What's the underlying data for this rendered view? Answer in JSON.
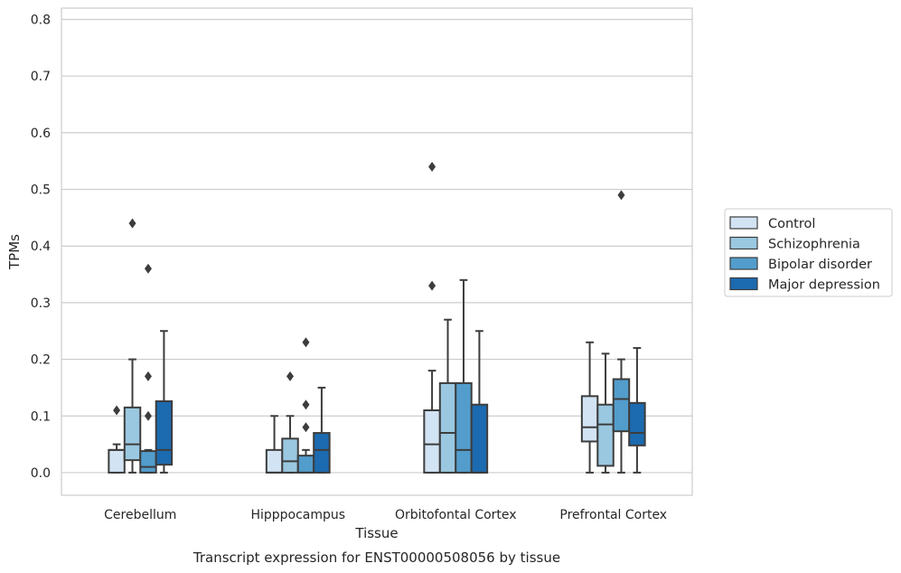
{
  "chart_data": {
    "type": "box",
    "title": "",
    "caption": "Transcript expression for ENST00000508056 by tissue",
    "xlabel": "Tissue",
    "ylabel": "TPMs",
    "ylim": [
      -0.04,
      0.82
    ],
    "yticks": [
      0.0,
      0.1,
      0.2,
      0.3,
      0.4,
      0.5,
      0.6,
      0.7,
      0.8
    ],
    "ytick_labels": [
      "0.0",
      "0.1",
      "0.2",
      "0.3",
      "0.4",
      "0.5",
      "0.6",
      "0.7",
      "0.8"
    ],
    "grid": "horizontal",
    "legend_position": "right",
    "categories": [
      "Cerebellum",
      "Hipppocampus",
      "Orbitofontal Cortex",
      "Prefrontal Cortex"
    ],
    "series": [
      {
        "name": "Control",
        "color": "#d2e3f3",
        "boxes": [
          {
            "whislo": 0.0,
            "q1": 0.0,
            "med": 0.04,
            "q3": 0.04,
            "whishi": 0.05,
            "fliers": [
              0.11
            ]
          },
          {
            "whislo": 0.0,
            "q1": 0.0,
            "med": 0.0,
            "q3": 0.04,
            "whishi": 0.1,
            "fliers": []
          },
          {
            "whislo": 0.0,
            "q1": 0.0,
            "med": 0.05,
            "q3": 0.11,
            "whishi": 0.18,
            "fliers": [
              0.33,
              0.54
            ]
          },
          {
            "whislo": 0.0,
            "q1": 0.055,
            "med": 0.08,
            "q3": 0.135,
            "whishi": 0.23,
            "fliers": []
          }
        ]
      },
      {
        "name": "Schizophrenia",
        "color": "#9ac8e0",
        "boxes": [
          {
            "whislo": 0.0,
            "q1": 0.022,
            "med": 0.05,
            "q3": 0.115,
            "whishi": 0.2,
            "fliers": [
              0.44
            ]
          },
          {
            "whislo": 0.0,
            "q1": 0.0,
            "med": 0.02,
            "q3": 0.06,
            "whishi": 0.1,
            "fliers": [
              0.17
            ]
          },
          {
            "whislo": 0.0,
            "q1": 0.0,
            "med": 0.07,
            "q3": 0.158,
            "whishi": 0.27,
            "fliers": []
          },
          {
            "whislo": 0.0,
            "q1": 0.012,
            "med": 0.085,
            "q3": 0.12,
            "whishi": 0.21,
            "fliers": []
          }
        ]
      },
      {
        "name": "Bipolar disorder",
        "color": "#529dcc",
        "boxes": [
          {
            "whislo": 0.0,
            "q1": 0.0,
            "med": 0.01,
            "q3": 0.038,
            "whishi": 0.04,
            "fliers": [
              0.1,
              0.17,
              0.36
            ]
          },
          {
            "whislo": 0.0,
            "q1": 0.0,
            "med": 0.0,
            "q3": 0.03,
            "whishi": 0.04,
            "fliers": [
              0.08,
              0.12,
              0.23
            ]
          },
          {
            "whislo": 0.0,
            "q1": 0.0,
            "med": 0.04,
            "q3": 0.158,
            "whishi": 0.34,
            "fliers": []
          },
          {
            "whislo": 0.0,
            "q1": 0.073,
            "med": 0.13,
            "q3": 0.165,
            "whishi": 0.2,
            "fliers": [
              0.49
            ]
          }
        ]
      },
      {
        "name": "Major depression",
        "color": "#1c6aaf",
        "boxes": [
          {
            "whislo": 0.0,
            "q1": 0.014,
            "med": 0.04,
            "q3": 0.126,
            "whishi": 0.25,
            "fliers": []
          },
          {
            "whislo": 0.0,
            "q1": 0.0,
            "med": 0.04,
            "q3": 0.07,
            "whishi": 0.15,
            "fliers": []
          },
          {
            "whislo": 0.0,
            "q1": 0.0,
            "med": 0.0,
            "q3": 0.12,
            "whishi": 0.25,
            "fliers": []
          },
          {
            "whislo": 0.0,
            "q1": 0.048,
            "med": 0.07,
            "q3": 0.123,
            "whishi": 0.22,
            "fliers": []
          }
        ]
      }
    ]
  }
}
